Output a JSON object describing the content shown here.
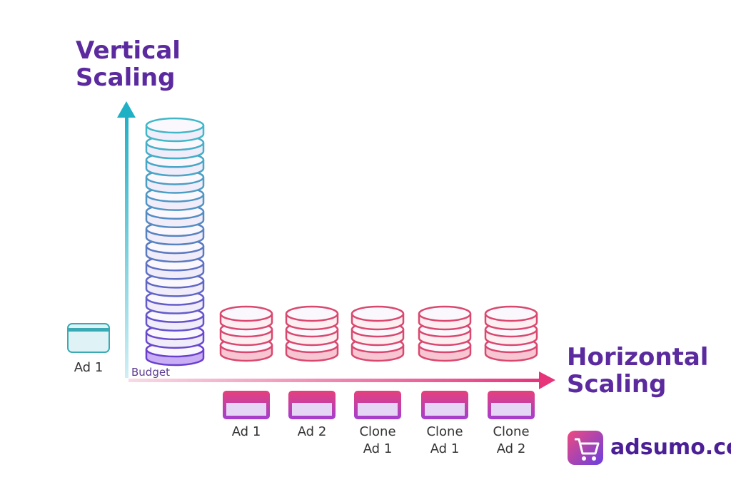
{
  "vertical_title": [
    "Vertical",
    "Scaling"
  ],
  "horizontal_title": [
    "Horizontal",
    "Scaling"
  ],
  "budget_label": "Budget",
  "left_ad_label": "Ad 1",
  "ads": [
    {
      "line1": "Ad 1",
      "line2": ""
    },
    {
      "line1": "Ad 2",
      "line2": ""
    },
    {
      "line1": "Clone",
      "line2": "Ad 1"
    },
    {
      "line1": "Clone",
      "line2": "Ad 1"
    },
    {
      "line1": "Clone",
      "line2": "Ad 2"
    }
  ],
  "vertical_stack_discs": 14,
  "horizontal_stack_discs": 3,
  "brand": {
    "name": "adsumo.co",
    "icon": "shopping-cart-icon"
  },
  "colors": {
    "purple": "#5b2a9e",
    "teal": "#2bb5c9",
    "pink": "#e0407a",
    "violet": "#7b3fe0"
  }
}
